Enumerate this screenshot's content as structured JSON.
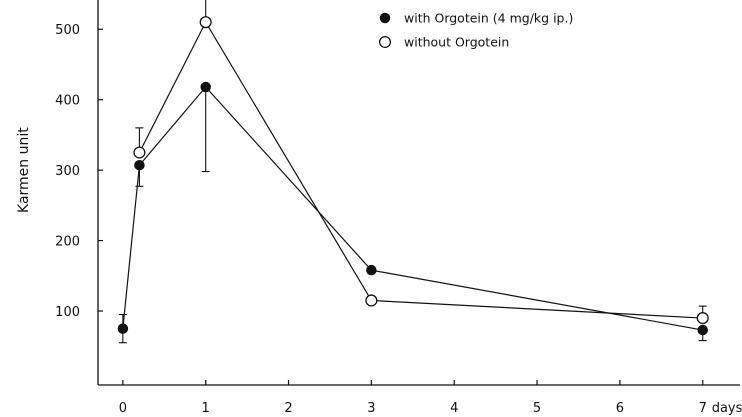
{
  "chart_data": {
    "type": "line",
    "title": "",
    "xlabel": "",
    "x_unit_label": "days",
    "ylabel": "Karmen unit",
    "xlim": [
      -0.3,
      7.45
    ],
    "ylim": [
      -5,
      550
    ],
    "x_ticks": [
      0,
      1,
      2,
      3,
      4,
      5,
      6,
      7
    ],
    "x_tick_labels": [
      "0",
      "1",
      "2",
      "3",
      "4",
      "5",
      "6",
      "7"
    ],
    "y_ticks": [
      100,
      200,
      300,
      400,
      500
    ],
    "y_tick_labels": [
      "100",
      "200",
      "300",
      "400",
      "500"
    ],
    "grid": false,
    "legend_position": "top-right",
    "series": [
      {
        "name": "with Orgotein (4 mg/kg ip.)",
        "marker": "filled-circle",
        "color": "#111111",
        "x": [
          0,
          0.2,
          1,
          3,
          7
        ],
        "y": [
          75,
          307,
          418,
          158,
          73
        ],
        "error_low": [
          20,
          30,
          120,
          0,
          15
        ],
        "error_high": [
          20,
          0,
          0,
          0,
          0
        ]
      },
      {
        "name": "without Orgotein",
        "marker": "open-circle",
        "color": "#111111",
        "x": [
          0.2,
          1,
          3,
          7
        ],
        "y": [
          325,
          510,
          115,
          90
        ],
        "error_low": [
          0,
          0,
          0,
          0
        ],
        "error_high": [
          35,
          45,
          0,
          17
        ]
      }
    ]
  }
}
